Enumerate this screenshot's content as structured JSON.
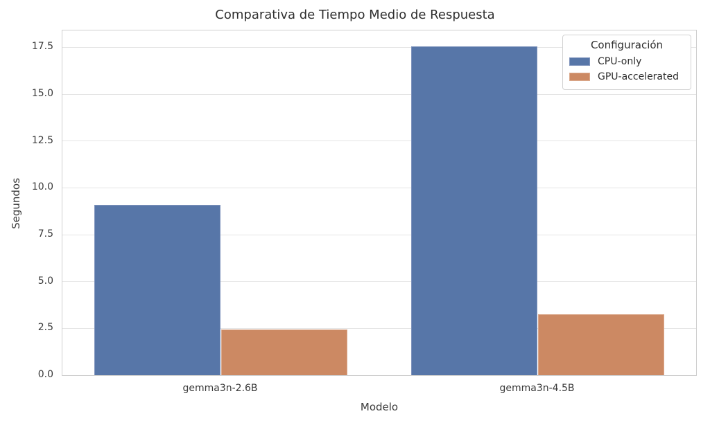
{
  "chart_data": {
    "type": "bar",
    "title": "Comparativa de Tiempo Medio de Respuesta",
    "xlabel": "Modelo",
    "ylabel": "Segundos",
    "categories": [
      "gemma3n-2.6B",
      "gemma3n-4.5B"
    ],
    "series": [
      {
        "name": "CPU-only",
        "color": "#5776a8",
        "edge_color": "#7e93bc",
        "values": [
          9.1,
          17.55
        ]
      },
      {
        "name": "GPU-accelerated",
        "color": "#cc8963",
        "edge_color": "#dba98c",
        "values": [
          2.45,
          3.25
        ]
      }
    ],
    "ylim": [
      0,
      18.4
    ],
    "yticks": [
      0.0,
      2.5,
      5.0,
      7.5,
      10.0,
      12.5,
      15.0,
      17.5
    ],
    "ytick_labels": [
      "0.0",
      "2.5",
      "5.0",
      "7.5",
      "10.0",
      "12.5",
      "15.0",
      "17.5"
    ],
    "grid": "horizontal",
    "bar_group_width_fraction": 0.8,
    "legend": {
      "title": "Configuración",
      "position": "upper right",
      "entries": [
        "CPU-only",
        "GPU-accelerated"
      ]
    }
  }
}
